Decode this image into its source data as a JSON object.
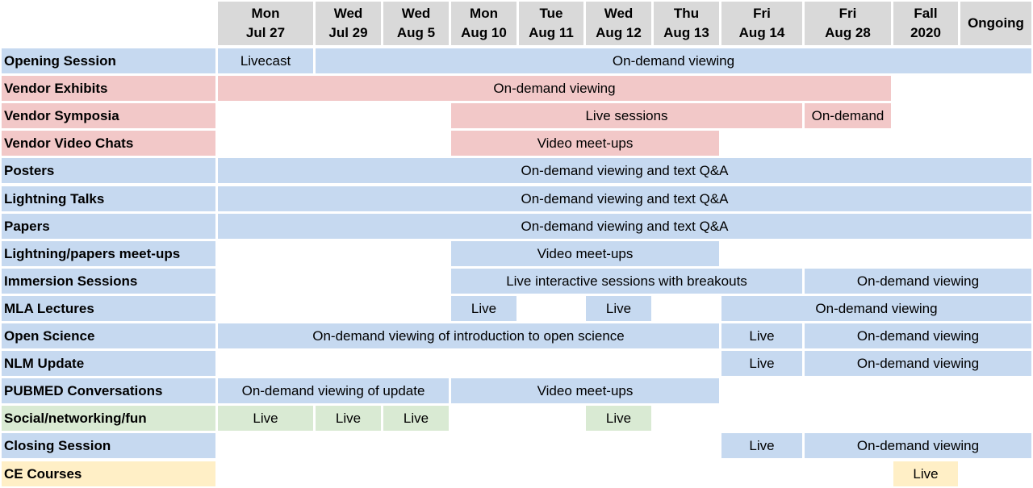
{
  "columns": [
    {
      "line1": "Mon",
      "line2": "Jul 27"
    },
    {
      "line1": "Wed",
      "line2": "Jul 29"
    },
    {
      "line1": "Wed",
      "line2": "Aug 5"
    },
    {
      "line1": "Mon",
      "line2": "Aug 10"
    },
    {
      "line1": "Tue",
      "line2": "Aug 11"
    },
    {
      "line1": "Wed",
      "line2": "Aug 12"
    },
    {
      "line1": "Thu",
      "line2": "Aug 13"
    },
    {
      "line1": "Fri",
      "line2": "Aug 14"
    },
    {
      "line1": "Fri",
      "line2": "Aug 28"
    },
    {
      "line1": "Fall",
      "line2": "2020"
    },
    {
      "line1": "Ongoing",
      "line2": ""
    }
  ],
  "rows": [
    {
      "label": "Opening Session",
      "color": "#c6d9f0",
      "cells": [
        {
          "text": "Livecast",
          "start": 0,
          "end": 0,
          "color": "#c6d9f0"
        },
        {
          "text": "On-demand viewing",
          "start": 1,
          "end": 10,
          "color": "#c6d9f0"
        }
      ]
    },
    {
      "label": "Vendor Exhibits",
      "color": "#f2c8c8",
      "cells": [
        {
          "text": "On-demand viewing",
          "start": 0,
          "end": 8,
          "color": "#f2c8c8"
        }
      ]
    },
    {
      "label": "Vendor Symposia",
      "color": "#f2c8c8",
      "cells": [
        {
          "text": "Live sessions",
          "start": 3,
          "end": 7,
          "color": "#f2c8c8"
        },
        {
          "text": "On-demand",
          "start": 8,
          "end": 8,
          "color": "#f2c8c8"
        }
      ]
    },
    {
      "label": "Vendor Video Chats",
      "color": "#f2c8c8",
      "cells": [
        {
          "text": "Video meet-ups",
          "start": 3,
          "end": 6,
          "color": "#f2c8c8"
        }
      ]
    },
    {
      "label": "Posters",
      "color": "#c6d9f0",
      "cells": [
        {
          "text": "On-demand viewing and text Q&A",
          "start": 0,
          "end": 10,
          "color": "#c6d9f0"
        }
      ]
    },
    {
      "label": "Lightning Talks",
      "color": "#c6d9f0",
      "cells": [
        {
          "text": "On-demand viewing and text Q&A",
          "start": 0,
          "end": 10,
          "color": "#c6d9f0"
        }
      ]
    },
    {
      "label": "Papers",
      "color": "#c6d9f0",
      "cells": [
        {
          "text": "On-demand viewing and text Q&A",
          "start": 0,
          "end": 10,
          "color": "#c6d9f0"
        }
      ]
    },
    {
      "label": "Lightning/papers meet-ups",
      "color": "#c6d9f0",
      "cells": [
        {
          "text": "Video meet-ups",
          "start": 3,
          "end": 6,
          "color": "#c6d9f0"
        }
      ]
    },
    {
      "label": "Immersion Sessions",
      "color": "#c6d9f0",
      "cells": [
        {
          "text": "Live interactive sessions with breakouts",
          "start": 3,
          "end": 7,
          "color": "#c6d9f0"
        },
        {
          "text": "On-demand viewing",
          "start": 8,
          "end": 10,
          "color": "#c6d9f0"
        }
      ]
    },
    {
      "label": "MLA Lectures",
      "color": "#c6d9f0",
      "cells": [
        {
          "text": "Live",
          "start": 3,
          "end": 3,
          "color": "#c6d9f0"
        },
        {
          "text": "Live",
          "start": 5,
          "end": 5,
          "color": "#c6d9f0"
        },
        {
          "text": "On-demand viewing",
          "start": 7,
          "end": 10,
          "color": "#c6d9f0"
        }
      ]
    },
    {
      "label": "Open Science",
      "color": "#c6d9f0",
      "cells": [
        {
          "text": "On-demand viewing of introduction to open science",
          "start": 0,
          "end": 6,
          "color": "#c6d9f0"
        },
        {
          "text": "Live",
          "start": 7,
          "end": 7,
          "color": "#c6d9f0"
        },
        {
          "text": "On-demand viewing",
          "start": 8,
          "end": 10,
          "color": "#c6d9f0"
        }
      ]
    },
    {
      "label": "NLM Update",
      "color": "#c6d9f0",
      "cells": [
        {
          "text": "Live",
          "start": 7,
          "end": 7,
          "color": "#c6d9f0"
        },
        {
          "text": "On-demand viewing",
          "start": 8,
          "end": 10,
          "color": "#c6d9f0"
        }
      ]
    },
    {
      "label": "PUBMED Conversations",
      "color": "#c6d9f0",
      "cells": [
        {
          "text": "On-demand viewing of update",
          "start": 0,
          "end": 2,
          "color": "#c6d9f0"
        },
        {
          "text": "Video meet-ups",
          "start": 3,
          "end": 6,
          "color": "#c6d9f0"
        }
      ]
    },
    {
      "label": "Social/networking/fun",
      "color": "#d9ead3",
      "cells": [
        {
          "text": "Live",
          "start": 0,
          "end": 0,
          "color": "#d9ead3"
        },
        {
          "text": "Live",
          "start": 1,
          "end": 1,
          "color": "#d9ead3"
        },
        {
          "text": "Live",
          "start": 2,
          "end": 2,
          "color": "#d9ead3"
        },
        {
          "text": "Live",
          "start": 5,
          "end": 5,
          "color": "#d9ead3"
        }
      ]
    },
    {
      "label": "Closing Session",
      "color": "#c6d9f0",
      "cells": [
        {
          "text": "Live",
          "start": 7,
          "end": 7,
          "color": "#c6d9f0"
        },
        {
          "text": "On-demand viewing",
          "start": 8,
          "end": 10,
          "color": "#c6d9f0"
        }
      ]
    },
    {
      "label": "CE Courses",
      "color": "#ffefc6",
      "cells": [
        {
          "text": "Live",
          "start": 9,
          "end": 9,
          "color": "#ffefc6"
        }
      ]
    }
  ]
}
